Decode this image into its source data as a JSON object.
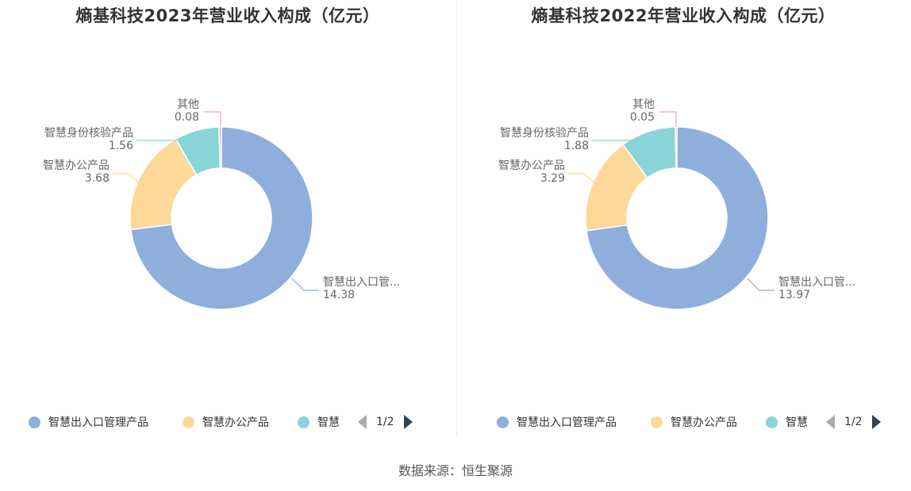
{
  "chart_data": [
    {
      "type": "pie",
      "variant": "donut",
      "title": "熵基科技2023年营业收入构成（亿元）",
      "slices": [
        {
          "name": "智慧出入口管理产品",
          "label": "智慧出入口管...",
          "value": 14.38,
          "display": "14.38",
          "color": "#8eaedc"
        },
        {
          "name": "智慧办公产品",
          "label": "智慧办公产品",
          "value": 3.68,
          "display": "3.68",
          "color": "#fdd999"
        },
        {
          "name": "智慧身份核验产品",
          "label": "智慧身份核验产品",
          "value": 1.56,
          "display": "1.56",
          "color": "#89d4d9"
        },
        {
          "name": "其他",
          "label": "其他",
          "value": 0.08,
          "display": "0.08",
          "color": "#e8a3c4"
        }
      ],
      "legend": {
        "placement": "bottom",
        "items": [
          "智慧出入口管理产品",
          "智慧办公产品",
          "智慧"
        ],
        "page": "1/2"
      }
    },
    {
      "type": "pie",
      "variant": "donut",
      "title": "熵基科技2022年营业收入构成（亿元）",
      "slices": [
        {
          "name": "智慧出入口管理产品",
          "label": "智慧出入口管...",
          "value": 13.97,
          "display": "13.97",
          "color": "#8eaedc"
        },
        {
          "name": "智慧办公产品",
          "label": "智慧办公产品",
          "value": 3.29,
          "display": "3.29",
          "color": "#fdd999"
        },
        {
          "name": "智慧身份核验产品",
          "label": "智慧身份核验产品",
          "value": 1.88,
          "display": "1.88",
          "color": "#89d4d9"
        },
        {
          "name": "其他",
          "label": "其他",
          "value": 0.05,
          "display": "0.05",
          "color": "#e8a3c4"
        }
      ],
      "legend": {
        "placement": "bottom",
        "items": [
          "智慧出入口管理产品",
          "智慧办公产品",
          "智慧"
        ],
        "page": "1/2"
      }
    }
  ],
  "footer": {
    "source": "数据来源：恒生聚源"
  }
}
